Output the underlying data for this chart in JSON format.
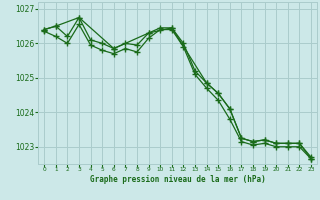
{
  "background_color": "#cce8e8",
  "plot_bg_color": "#cce8e8",
  "grid_color": "#aacccc",
  "line_color": "#1a6b1a",
  "marker_color": "#1a6b1a",
  "xlabel": "Graphe pression niveau de la mer (hPa)",
  "xlabel_color": "#1a6b1a",
  "ylabel_color": "#1a6b1a",
  "ylim": [
    1022.5,
    1027.2
  ],
  "xlim": [
    -0.5,
    23.5
  ],
  "yticks": [
    1023,
    1024,
    1025,
    1026,
    1027
  ],
  "xticks": [
    0,
    1,
    2,
    3,
    4,
    5,
    6,
    7,
    8,
    9,
    10,
    11,
    12,
    13,
    14,
    15,
    16,
    17,
    18,
    19,
    20,
    21,
    22,
    23
  ],
  "series": [
    {
      "x": [
        0,
        1,
        2,
        3,
        4,
        5,
        6,
        7,
        8,
        9,
        10,
        11,
        12,
        13,
        14,
        15,
        16,
        17,
        18,
        19,
        20,
        21,
        22,
        23
      ],
      "y": [
        1026.4,
        1026.5,
        1026.2,
        1026.75,
        1026.1,
        1026.0,
        1025.85,
        1026.0,
        1025.95,
        1026.3,
        1026.45,
        1026.45,
        1026.0,
        1025.2,
        1024.85,
        1024.55,
        1024.1,
        1023.25,
        1023.15,
        1023.2,
        1023.1,
        1023.1,
        1023.1,
        1022.7
      ]
    },
    {
      "x": [
        0,
        1,
        2,
        3,
        4,
        5,
        6,
        7,
        8,
        9,
        10,
        11,
        12,
        13,
        14,
        15,
        16,
        17,
        18,
        19,
        20,
        21,
        22,
        23
      ],
      "y": [
        1026.35,
        1026.2,
        1026.0,
        1026.55,
        1025.95,
        1025.8,
        1025.7,
        1025.85,
        1025.75,
        1026.15,
        1026.4,
        1026.4,
        1025.9,
        1025.1,
        1024.7,
        1024.35,
        1023.8,
        1023.15,
        1023.05,
        1023.1,
        1023.0,
        1023.0,
        1023.0,
        1022.65
      ]
    },
    {
      "x": [
        0,
        1,
        3,
        6,
        9,
        11,
        14,
        15,
        16,
        17,
        18,
        19,
        20,
        21,
        22,
        23
      ],
      "y": [
        1026.4,
        1026.5,
        1026.75,
        1025.85,
        1026.3,
        1026.45,
        1024.85,
        1024.55,
        1024.1,
        1023.25,
        1023.15,
        1023.2,
        1023.1,
        1023.1,
        1023.1,
        1022.65
      ]
    }
  ]
}
